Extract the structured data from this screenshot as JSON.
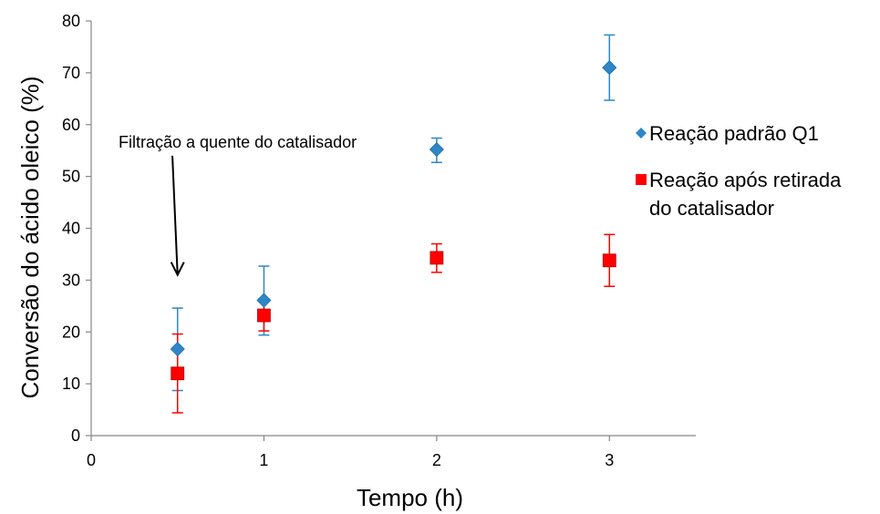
{
  "chart_data": {
    "type": "scatter",
    "title": "",
    "xlabel": "Tempo (h)",
    "ylabel": "Conversão do ácido oleico (%)",
    "xlim": [
      0,
      3.5
    ],
    "ylim": [
      0,
      80
    ],
    "xticks": [
      0,
      1,
      2,
      3
    ],
    "yticks": [
      0,
      10,
      20,
      30,
      40,
      50,
      60,
      70,
      80
    ],
    "grid": false,
    "legend_position": "right",
    "series": [
      {
        "name": "Reação padrão Q1",
        "color": "#2e86c8",
        "marker": "diamond",
        "x": [
          0.5,
          1,
          2,
          3
        ],
        "y": [
          16.7,
          26.1,
          55.2,
          71.0
        ],
        "err_low": [
          8.0,
          6.7,
          2.5,
          6.3
        ],
        "err_high": [
          7.9,
          6.6,
          2.2,
          6.3
        ]
      },
      {
        "name": "Reação após retirada do catalisador",
        "legend_lines": [
          "Reação após retirada",
          "do catalisador"
        ],
        "color": "#ff0000",
        "marker": "square",
        "x": [
          0.5,
          1,
          2,
          3
        ],
        "y": [
          12.0,
          23.2,
          34.3,
          33.8
        ],
        "err_low": [
          7.6,
          3.0,
          2.8,
          5.0
        ],
        "err_high": [
          7.6,
          3.0,
          2.7,
          5.0
        ]
      }
    ],
    "annotation": {
      "text": "Filtração a quente do catalisador",
      "arrow_from": [
        0.47,
        54
      ],
      "arrow_to": [
        0.5,
        31
      ]
    }
  }
}
